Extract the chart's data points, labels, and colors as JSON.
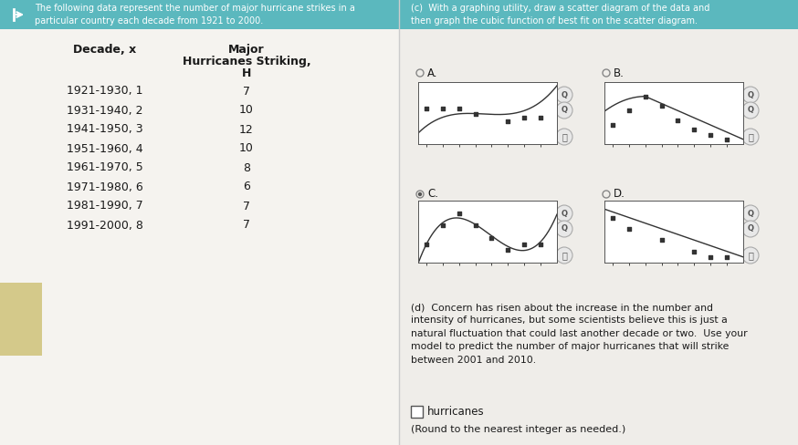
{
  "title_left": "The following data represent the number of major hurricane strikes in a\nparticular country each decade from 1921 to 2000.",
  "title_right": "(c)  With a graphing utility, draw a scatter diagram of the data and\nthen graph the cubic function of best fit on the scatter diagram.",
  "part_d_text": "(d)  Concern has risen about the increase in the number and\nintensity of hurricanes, but some scientists believe this is just a\nnatural fluctuation that could last another decade or two.  Use your\nmodel to predict the number of major hurricanes that will strike\nbetween 2001 and 2010.",
  "answer_text": "(Round to the nearest integer as needed.)",
  "hurricanes_text": "hurricanes",
  "table_header_col1": "Decade, x",
  "table_header_col2_line1": "Major",
  "table_header_col2_line2": "Hurricanes Striking,",
  "table_header_col2_line3": "H",
  "table_data": [
    [
      "1921-1930, 1",
      "7"
    ],
    [
      "1931-1940, 2",
      "10"
    ],
    [
      "1941-1950, 3",
      "12"
    ],
    [
      "1951-1960, 4",
      "10"
    ],
    [
      "1961-1970, 5",
      "8"
    ],
    [
      "1971-1980, 6",
      "6"
    ],
    [
      "1981-1990, 7",
      "7"
    ],
    [
      "1991-2000, 8",
      "7"
    ]
  ],
  "x_data": [
    1,
    2,
    3,
    4,
    5,
    6,
    7,
    8
  ],
  "y_data": [
    7,
    10,
    12,
    10,
    8,
    6,
    7,
    7
  ],
  "teal_color": "#5bb8be",
  "left_bg": "#f5f3ef",
  "right_bg": "#efede9",
  "tan_color": "#d4c98a",
  "chart_border": "#aaaaaa",
  "curve_color": "#444444",
  "dot_color": "#555555",
  "text_dark": "#1a1a1a",
  "text_white": "#ffffff",
  "icon_bg": "#e8e8e8",
  "icon_border": "#aaaaaa",
  "radio_border": "#888888",
  "radio_fill": "#555555",
  "divider_color": "#cccccc"
}
